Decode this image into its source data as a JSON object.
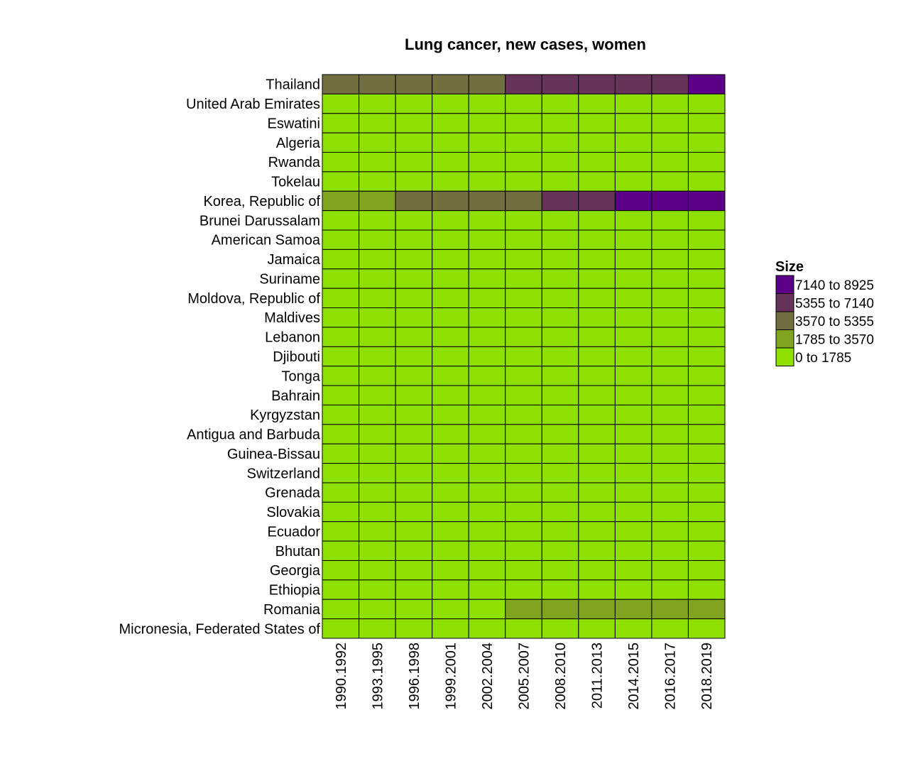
{
  "chart_data": {
    "type": "heatmap",
    "title": "Lung cancer, new cases, women",
    "xlabel": "",
    "ylabel": "",
    "x": [
      "1990.1992",
      "1993.1995",
      "1996.1998",
      "1999.2001",
      "2002.2004",
      "2005.2007",
      "2008.2010",
      "2011.2013",
      "2014.2015",
      "2016.2017",
      "2018.2019"
    ],
    "y": [
      "Thailand",
      "United Arab Emirates",
      "Eswatini",
      "Algeria",
      "Rwanda",
      "Tokelau",
      "Korea, Republic of",
      "Brunei Darussalam",
      "American Samoa",
      "Jamaica",
      "Suriname",
      "Moldova, Republic of",
      "Maldives",
      "Lebanon",
      "Djibouti",
      "Tonga",
      "Bahrain",
      "Kyrgyzstan",
      "Antigua and Barbuda",
      "Guinea-Bissau",
      "Switzerland",
      "Grenada",
      "Slovakia",
      "Ecuador",
      "Bhutan",
      "Georgia",
      "Ethiopia",
      "Romania",
      "Micronesia, Federated States of"
    ],
    "bins": [
      {
        "label": "7140 to 8925",
        "color": "#5b0087"
      },
      {
        "label": "5355 to 7140",
        "color": "#66345b"
      },
      {
        "label": "3570 to 5355",
        "color": "#716e40"
      },
      {
        "label": "1785 to 3570",
        "color": "#80a320"
      },
      {
        "label": "0 to 1785",
        "color": "#8ee000"
      }
    ],
    "cells": [
      [
        2,
        2,
        2,
        2,
        2,
        1,
        1,
        1,
        1,
        1,
        0
      ],
      [
        4,
        4,
        4,
        4,
        4,
        4,
        4,
        4,
        4,
        4,
        4
      ],
      [
        4,
        4,
        4,
        4,
        4,
        4,
        4,
        4,
        4,
        4,
        4
      ],
      [
        4,
        4,
        4,
        4,
        4,
        4,
        4,
        4,
        4,
        4,
        4
      ],
      [
        4,
        4,
        4,
        4,
        4,
        4,
        4,
        4,
        4,
        4,
        4
      ],
      [
        4,
        4,
        4,
        4,
        4,
        4,
        4,
        4,
        4,
        4,
        4
      ],
      [
        3,
        3,
        2,
        2,
        2,
        2,
        1,
        1,
        0,
        0,
        0
      ],
      [
        4,
        4,
        4,
        4,
        4,
        4,
        4,
        4,
        4,
        4,
        4
      ],
      [
        4,
        4,
        4,
        4,
        4,
        4,
        4,
        4,
        4,
        4,
        4
      ],
      [
        4,
        4,
        4,
        4,
        4,
        4,
        4,
        4,
        4,
        4,
        4
      ],
      [
        4,
        4,
        4,
        4,
        4,
        4,
        4,
        4,
        4,
        4,
        4
      ],
      [
        4,
        4,
        4,
        4,
        4,
        4,
        4,
        4,
        4,
        4,
        4
      ],
      [
        4,
        4,
        4,
        4,
        4,
        4,
        4,
        4,
        4,
        4,
        4
      ],
      [
        4,
        4,
        4,
        4,
        4,
        4,
        4,
        4,
        4,
        4,
        4
      ],
      [
        4,
        4,
        4,
        4,
        4,
        4,
        4,
        4,
        4,
        4,
        4
      ],
      [
        4,
        4,
        4,
        4,
        4,
        4,
        4,
        4,
        4,
        4,
        4
      ],
      [
        4,
        4,
        4,
        4,
        4,
        4,
        4,
        4,
        4,
        4,
        4
      ],
      [
        4,
        4,
        4,
        4,
        4,
        4,
        4,
        4,
        4,
        4,
        4
      ],
      [
        4,
        4,
        4,
        4,
        4,
        4,
        4,
        4,
        4,
        4,
        4
      ],
      [
        4,
        4,
        4,
        4,
        4,
        4,
        4,
        4,
        4,
        4,
        4
      ],
      [
        4,
        4,
        4,
        4,
        4,
        4,
        4,
        4,
        4,
        4,
        4
      ],
      [
        4,
        4,
        4,
        4,
        4,
        4,
        4,
        4,
        4,
        4,
        4
      ],
      [
        4,
        4,
        4,
        4,
        4,
        4,
        4,
        4,
        4,
        4,
        4
      ],
      [
        4,
        4,
        4,
        4,
        4,
        4,
        4,
        4,
        4,
        4,
        4
      ],
      [
        4,
        4,
        4,
        4,
        4,
        4,
        4,
        4,
        4,
        4,
        4
      ],
      [
        4,
        4,
        4,
        4,
        4,
        4,
        4,
        4,
        4,
        4,
        4
      ],
      [
        4,
        4,
        4,
        4,
        4,
        4,
        4,
        4,
        4,
        4,
        4
      ],
      [
        4,
        4,
        4,
        4,
        4,
        3,
        3,
        3,
        3,
        3,
        3
      ],
      [
        4,
        4,
        4,
        4,
        4,
        4,
        4,
        4,
        4,
        4,
        4
      ]
    ],
    "legend": {
      "title": "Size",
      "position": "right"
    },
    "grid": false
  }
}
